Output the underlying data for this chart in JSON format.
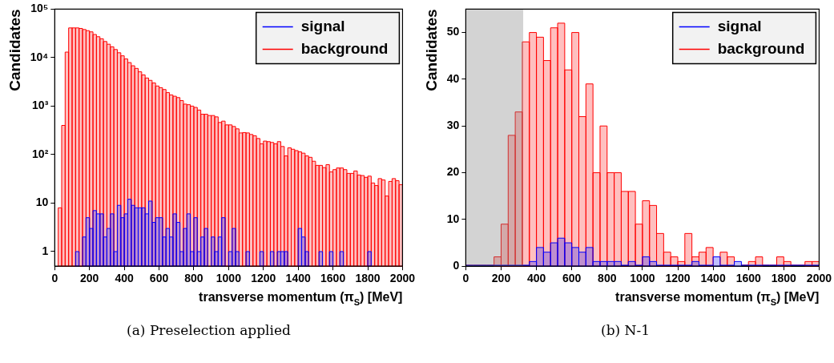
{
  "chart_data": [
    {
      "type": "histogram",
      "xlabel": "transverse momentum (π$_{S}$) [MeV]",
      "ylabel": "Candidates",
      "annotations": [
        "(a) Preselection applied"
      ],
      "bins": [
        0,
        20,
        40,
        60,
        80,
        100,
        120,
        140,
        160,
        180,
        200,
        220,
        240,
        260,
        280,
        300,
        320,
        340,
        360,
        380,
        400,
        420,
        440,
        460,
        480,
        500,
        520,
        540,
        560,
        580,
        600,
        620,
        640,
        660,
        680,
        700,
        720,
        740,
        760,
        780,
        800,
        820,
        840,
        860,
        880,
        900,
        920,
        940,
        960,
        980,
        1000,
        1020,
        1040,
        1060,
        1080,
        1100,
        1120,
        1140,
        1160,
        1180,
        1200,
        1220,
        1240,
        1260,
        1280,
        1300,
        1320,
        1340,
        1360,
        1380,
        1400,
        1420,
        1440,
        1460,
        1480,
        1500,
        1520,
        1540,
        1560,
        1580,
        1600,
        1620,
        1640,
        1660,
        1680,
        1700,
        1720,
        1740,
        1760,
        1780,
        1800,
        1820,
        1840,
        1860,
        1880,
        1900,
        1920,
        1940,
        1960,
        1980,
        2000
      ],
      "series": [
        {
          "name": "signal",
          "color": "#0000ff",
          "values": [
            null,
            null,
            null,
            null,
            null,
            null,
            1,
            null,
            2,
            5,
            3,
            7,
            6,
            6,
            2,
            3,
            6,
            1,
            9,
            5,
            6,
            12,
            9,
            8,
            8,
            8,
            6,
            11,
            4,
            5,
            5,
            2,
            3,
            2,
            6,
            4,
            1,
            3,
            6,
            1,
            5,
            1,
            2,
            3,
            null,
            2,
            1,
            2,
            5,
            null,
            1,
            3,
            1,
            null,
            null,
            1,
            null,
            null,
            null,
            1,
            null,
            null,
            1,
            null,
            1,
            1,
            1,
            null,
            null,
            null,
            3,
            2,
            1,
            null,
            null,
            null,
            1,
            null,
            null,
            1,
            null,
            null,
            1,
            null,
            null,
            null,
            null,
            null,
            null,
            null,
            1,
            null,
            null,
            null,
            null,
            null,
            null,
            null,
            null,
            null
          ]
        },
        {
          "name": "background",
          "color": "#ff0000",
          "values": [
            null,
            8,
            400,
            13000,
            41000,
            41000,
            41000,
            40000,
            38000,
            36000,
            34000,
            30000,
            27000,
            24500,
            21500,
            18900,
            16700,
            14700,
            12600,
            10900,
            9400,
            7900,
            6800,
            6000,
            5100,
            4400,
            3800,
            3400,
            3000,
            2600,
            2400,
            2200,
            1900,
            1700,
            1600,
            1500,
            1300,
            1100,
            1070,
            1000,
            940,
            830,
            680,
            680,
            640,
            640,
            600,
            460,
            490,
            410,
            410,
            380,
            340,
            280,
            285,
            280,
            260,
            245,
            215,
            167,
            190,
            185,
            178,
            167,
            185,
            147,
            94,
            138,
            129,
            121,
            114,
            107,
            94,
            88,
            73,
            60,
            60,
            54,
            62,
            44,
            49,
            53,
            53,
            49,
            41,
            41,
            46,
            38,
            37,
            34,
            36,
            26,
            23,
            32,
            30,
            14,
            28,
            32,
            29,
            24
          ]
        }
      ],
      "xlim": [
        0,
        2000
      ],
      "xticks": [
        0,
        200,
        400,
        600,
        800,
        1000,
        1200,
        1400,
        1600,
        1800,
        2000
      ],
      "log": "y",
      "ylim": [
        0.5,
        100000
      ],
      "yticks": [
        1,
        10,
        {
          "value": 100,
          "label": "10²"
        },
        {
          "value": 1000,
          "label": "10³"
        },
        {
          "value": 10000,
          "label": "10⁴"
        },
        {
          "value": 100000,
          "label": "10⁵"
        }
      ],
      "legend": "top right"
    },
    {
      "type": "histogram",
      "xlabel": "transverse momentum (π$_{S}$) [MeV]",
      "ylabel": "Candidates",
      "annotations": [
        "(b) N-1"
      ],
      "bins": [
        0,
        40,
        80,
        120,
        160,
        200,
        240,
        280,
        320,
        360,
        400,
        440,
        480,
        520,
        560,
        600,
        640,
        680,
        720,
        760,
        800,
        840,
        880,
        920,
        960,
        1000,
        1040,
        1080,
        1120,
        1160,
        1200,
        1240,
        1280,
        1320,
        1360,
        1400,
        1440,
        1480,
        1520,
        1560,
        1600,
        1640,
        1680,
        1720,
        1760,
        1800,
        1840,
        1880,
        1920,
        1960,
        2000
      ],
      "series": [
        {
          "name": "signal",
          "color": "#0000ff",
          "values": [
            0,
            0,
            0,
            0,
            0,
            0,
            0,
            0,
            0,
            1,
            4,
            3,
            5,
            6,
            5,
            4,
            3,
            4,
            1,
            1,
            1,
            1,
            0,
            1,
            0,
            2,
            1,
            0,
            0,
            0,
            0,
            0,
            1,
            0,
            0,
            2,
            0,
            0,
            1,
            0,
            0,
            0,
            0,
            0,
            0,
            0,
            0,
            0,
            0,
            0
          ]
        },
        {
          "name": "background",
          "color": "#ff0000",
          "values": [
            0,
            0,
            0,
            0,
            2,
            9,
            28,
            33,
            48,
            50,
            49,
            44,
            51,
            52,
            42,
            50,
            32,
            39,
            20,
            30,
            20,
            20,
            16,
            16,
            9,
            14,
            13,
            7,
            3,
            2,
            1,
            7,
            2,
            3,
            4,
            null,
            3,
            2,
            null,
            0,
            1,
            2,
            0,
            0,
            2,
            1,
            0,
            0,
            1,
            1
          ]
        }
      ],
      "bands": [
        {
          "axis": "x",
          "from": 0,
          "to": 325,
          "color": "#808080"
        }
      ],
      "xlim": [
        0,
        2000
      ],
      "xticks": [
        0,
        200,
        400,
        600,
        800,
        1000,
        1200,
        1400,
        1600,
        1800,
        2000
      ],
      "ylim": [
        0,
        55
      ],
      "yticks": [
        0,
        10,
        20,
        30,
        40,
        50
      ],
      "legend": "top right"
    }
  ]
}
